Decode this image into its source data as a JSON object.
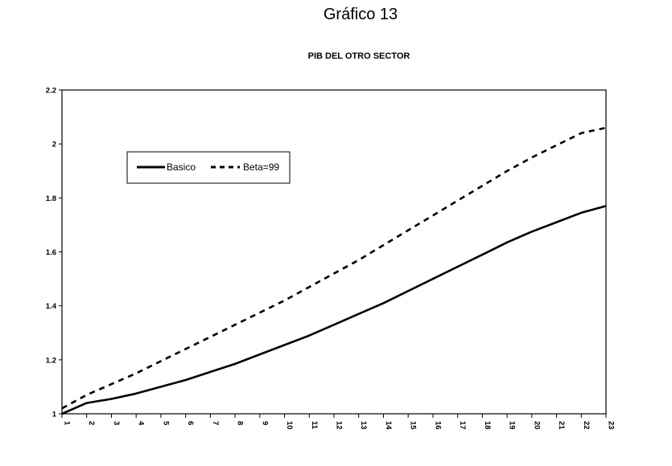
{
  "figure_title": "Gráfico 13",
  "chart_data": {
    "type": "line",
    "title": "PIB DEL OTRO SECTOR",
    "xlabel": "",
    "ylabel": "",
    "x": [
      1,
      2,
      3,
      4,
      5,
      6,
      7,
      8,
      9,
      10,
      11,
      12,
      13,
      14,
      15,
      16,
      17,
      18,
      19,
      20,
      21,
      22,
      23
    ],
    "ylim": [
      1,
      2.2
    ],
    "yticks": [
      "1",
      "1.2",
      "1.4",
      "1.6",
      "1.8",
      "2",
      "2.2"
    ],
    "grid": false,
    "legend_position": "upper-left",
    "series": [
      {
        "name": "Basico",
        "style": "solid",
        "color": "#000000",
        "values": [
          1.0,
          1.04,
          1.055,
          1.075,
          1.1,
          1.125,
          1.155,
          1.185,
          1.22,
          1.255,
          1.29,
          1.33,
          1.37,
          1.41,
          1.455,
          1.5,
          1.545,
          1.59,
          1.635,
          1.675,
          1.71,
          1.745,
          1.77
        ]
      },
      {
        "name": "Beta=99",
        "style": "dashed",
        "color": "#000000",
        "values": [
          1.02,
          1.07,
          1.11,
          1.15,
          1.195,
          1.24,
          1.285,
          1.33,
          1.375,
          1.42,
          1.47,
          1.52,
          1.57,
          1.625,
          1.68,
          1.735,
          1.79,
          1.845,
          1.9,
          1.95,
          1.995,
          2.04,
          2.06
        ]
      }
    ]
  }
}
